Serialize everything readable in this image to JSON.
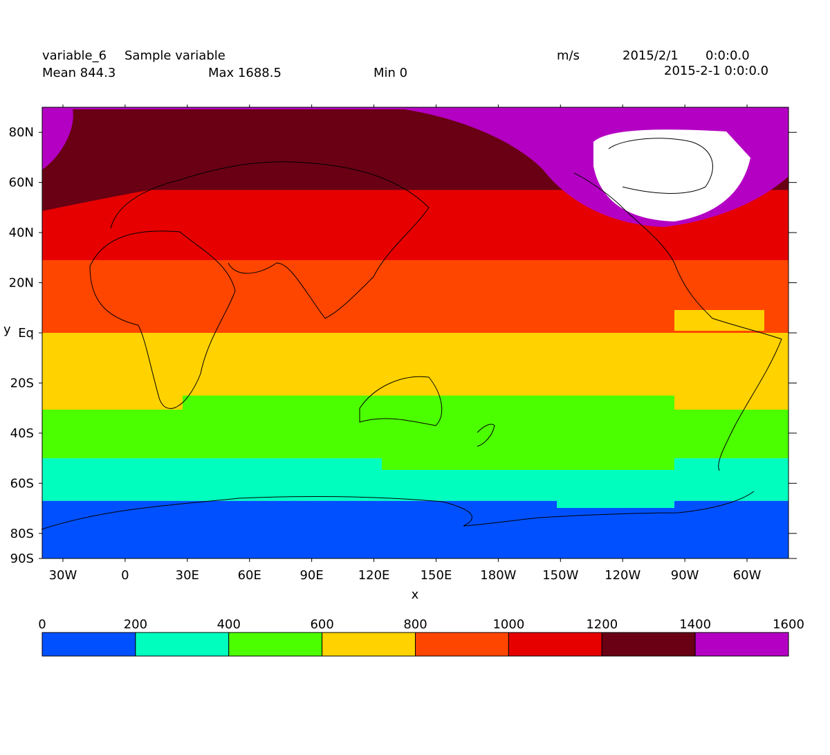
{
  "header": {
    "variable_name": "variable_6",
    "long_name": "Sample variable",
    "units": "m/s",
    "date": "2015/2/1",
    "time": "0:0:0.0",
    "datetime_full": "2015-2-1 0:0:0.0",
    "mean_text": "Mean 844.3",
    "max_text": "Max 1688.5",
    "min_text": "Min 0"
  },
  "chart_data": {
    "type": "heatmap",
    "title": "variable_6  Sample variable",
    "xlabel": "x",
    "ylabel": "y",
    "projection": "equirectangular, centered on 120E",
    "x_range": [
      -40,
      320
    ],
    "y_range": [
      -90,
      90
    ],
    "x_ticks": [
      "30W",
      "0",
      "30E",
      "60E",
      "90E",
      "120E",
      "150E",
      "180W",
      "150W",
      "120W",
      "90W",
      "60W"
    ],
    "y_ticks": [
      "80N",
      "60N",
      "40N",
      "20N",
      "Eq",
      "20S",
      "40S",
      "60S",
      "80S",
      "90S"
    ],
    "stats": {
      "mean": 844.3,
      "max": 1688.5,
      "min": 0
    },
    "units": "m/s",
    "colorbar": {
      "levels": [
        0,
        200,
        400,
        600,
        800,
        1000,
        1200,
        1400,
        1600
      ],
      "colors": [
        "#0050ff",
        "#00ffbf",
        "#4cff00",
        "#ffd200",
        "#ff4600",
        "#e60000",
        "#690014",
        "#b400c3"
      ],
      "above_max_color": "#ffffff"
    },
    "bands": [
      {
        "range": "0-200",
        "lat_from": -90,
        "lat_to": -67
      },
      {
        "range": "200-400",
        "lat_from": -67,
        "lat_to": -50
      },
      {
        "range": "400-600",
        "lat_from": -50,
        "lat_to": -25
      },
      {
        "range": "600-800",
        "lat_from": -25,
        "lat_to": 0
      },
      {
        "range": "800-1000",
        "lat_from": 0,
        "lat_to": 29
      },
      {
        "range": "1000-1200",
        "lat_from": 29,
        "lat_to": 57
      },
      {
        "range": "1200-1400",
        "lat_from": 57,
        "lat_to": 76
      },
      {
        "range": "1400-1600",
        "lat_from": 76,
        "lat_to": 90
      },
      {
        "range": ">1600",
        "region": "Canadian Arctic / Greenland",
        "lon_from": -110,
        "lon_to": -45,
        "lat_from": 58,
        "lat_to": 80
      }
    ],
    "grid": false,
    "legend": "bottom colorbar"
  }
}
